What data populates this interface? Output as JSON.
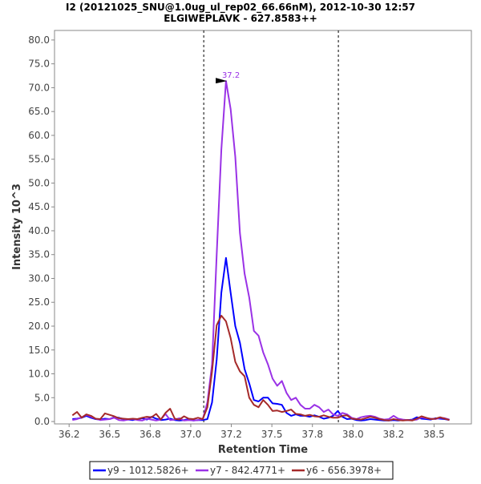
{
  "chart_data": {
    "type": "line",
    "title": "I2 (20121025_SNU@1.0ug_ul_rep02_66.66nM), 2012-10-30 12:57",
    "subtitle": "ELGIWEPLAVK - 627.8583++",
    "xlabel": "Retention Time",
    "ylabel": "Intensity 10^3",
    "xlim": [
      36.16,
      38.73
    ],
    "ylim": [
      -0.5,
      82
    ],
    "x_ticks": [
      36.25,
      36.5,
      36.75,
      37.0,
      37.25,
      37.5,
      37.75,
      38.0,
      38.25,
      38.5
    ],
    "x_tick_labels": [
      "36.2",
      "36.5",
      "36.8",
      "37.0",
      "37.2",
      "37.5",
      "37.8",
      "38.0",
      "38.2",
      "38.5"
    ],
    "y_ticks": [
      0,
      5,
      10,
      15,
      20,
      25,
      30,
      35,
      40,
      45,
      50,
      55,
      60,
      65,
      70,
      75,
      80
    ],
    "y_tick_labels": [
      "0.0",
      "5.0",
      "10.0",
      "15.0",
      "20.0",
      "25.0",
      "30.0",
      "35.0",
      "40.0",
      "45.0",
      "50.0",
      "55.0",
      "60.0",
      "65.0",
      "70.0",
      "75.0",
      "80.0"
    ],
    "grid": false,
    "integration_boundaries": [
      37.08,
      37.91
    ],
    "peak_annotation": {
      "label": "37.2",
      "x": 37.223,
      "y": 71.4,
      "color": "#9a32e6"
    },
    "x_start": 36.27,
    "x_step": 0.0287,
    "series": [
      {
        "name": "y9 - 1012.5826+",
        "color": "#0000ff",
        "values": [
          0.5,
          0.6,
          0.8,
          1.2,
          0.8,
          0.5,
          0.4,
          0.6,
          0.5,
          0.9,
          0.8,
          0.5,
          0.4,
          0.3,
          0.5,
          0.7,
          0.4,
          1.0,
          0.6,
          0.3,
          0.4,
          0.6,
          0.3,
          0.2,
          0.3,
          0.5,
          0.2,
          0.3,
          0.3,
          0.5,
          4,
          13,
          27,
          34.3,
          27,
          20,
          16.5,
          11,
          8,
          4.5,
          4.2,
          5,
          5,
          3.8,
          3.7,
          3.5,
          1.8,
          1.2,
          1.5,
          1.2,
          1.2,
          1.0,
          1.3,
          1.0,
          0.6,
          0.8,
          1.2,
          2.2,
          1.0,
          0.5,
          0.6,
          0.3,
          0.2,
          0.3,
          0.5,
          0.4,
          0.3,
          0.2,
          0.2,
          0.3,
          0.2,
          0.3,
          0.3,
          0.4,
          0.9,
          0.6,
          0.5,
          0.4,
          0.7,
          0.6,
          0.5,
          0.3
        ]
      },
      {
        "name": "y7 - 842.4771+",
        "color": "#9a32e6",
        "values": [
          0.3,
          0.5,
          0.9,
          1.4,
          1.0,
          0.6,
          0.3,
          0.4,
          0.5,
          0.8,
          0.3,
          0.2,
          0.4,
          0.5,
          0.3,
          0.2,
          0.6,
          0.4,
          0.2,
          0.4,
          1.6,
          0.3,
          0.4,
          0.7,
          0.2,
          0.3,
          0.2,
          0.3,
          0.5,
          4,
          12,
          35,
          57,
          71.4,
          65.5,
          55.5,
          39.5,
          31,
          26,
          19,
          18,
          14.5,
          12,
          9,
          7.5,
          8.5,
          6,
          4.5,
          5,
          3.5,
          2.7,
          2.7,
          3.5,
          3,
          2,
          2.5,
          1.5,
          1.2,
          1.8,
          1.5,
          0.8,
          0.5,
          0.9,
          1.1,
          1.2,
          1.0,
          0.6,
          0.4,
          0.5,
          1.2,
          0.6,
          0.4,
          0.3,
          0.3,
          0.4,
          0.9,
          0.7,
          0.6,
          0.5,
          0.8,
          0.7,
          0.4
        ]
      },
      {
        "name": "y6 - 656.3978+",
        "color": "#a52a2a",
        "values": [
          1.3,
          2.0,
          0.8,
          1.5,
          1.2,
          0.6,
          0.5,
          1.7,
          1.4,
          1.1,
          0.7,
          0.6,
          0.5,
          0.6,
          0.5,
          0.8,
          1.0,
          0.9,
          1.6,
          0.4,
          1.8,
          2.7,
          0.6,
          0.4,
          1.1,
          0.6,
          0.5,
          0.8,
          0.5,
          3,
          10.5,
          20.2,
          22.2,
          21,
          17.5,
          12.5,
          10.5,
          9.5,
          5,
          3.5,
          3,
          4.5,
          3.5,
          2.2,
          2.3,
          2,
          2.2,
          2.5,
          1.6,
          1.5,
          1.2,
          1.4,
          1.1,
          1.0,
          1.3,
          1.0,
          0.8,
          0.8,
          1.2,
          1.3,
          0.6,
          0.5,
          0.4,
          0.7,
          1.0,
          0.8,
          0.5,
          0.3,
          0.2,
          0.5,
          0.3,
          0.2,
          0.3,
          0.2,
          0.6,
          1.1,
          0.8,
          0.5,
          0.6,
          0.9,
          0.6,
          0.3
        ]
      }
    ]
  }
}
